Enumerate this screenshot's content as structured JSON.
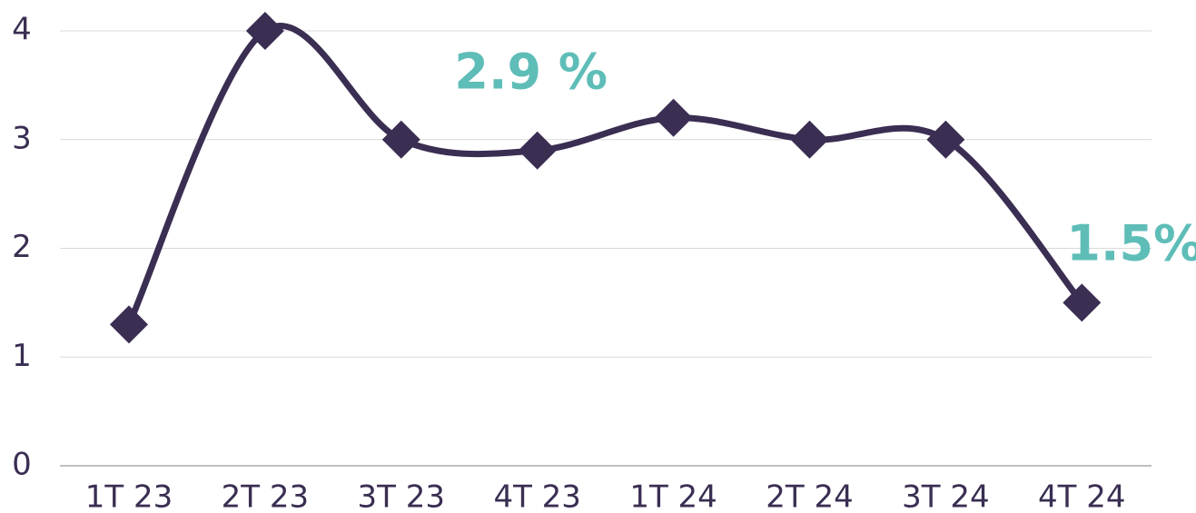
{
  "chart_data": {
    "type": "line",
    "categories": [
      "1T 23",
      "2T 23",
      "3T 23",
      "4T 23",
      "1T 24",
      "2T 24",
      "3T 24",
      "4T 24"
    ],
    "series": [
      {
        "color": "#3a2e52",
        "values": [
          1.3,
          4.0,
          3.0,
          2.9,
          3.2,
          3.0,
          3.0,
          1.5
        ],
        "value_labels": [
          null,
          null,
          null,
          "2.9 %",
          null,
          null,
          null,
          "1.5%"
        ]
      }
    ],
    "ylim": [
      0,
      4
    ],
    "yticks": [
      0,
      1,
      2,
      3,
      4
    ],
    "grid": true
  }
}
